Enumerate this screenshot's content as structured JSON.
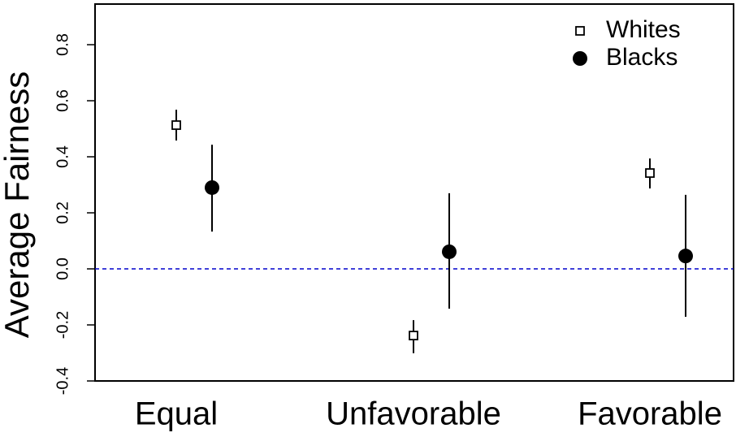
{
  "chart_data": {
    "type": "dotplot",
    "y_label": "Average Fairness",
    "categories": [
      "Equal",
      "Unfavorable",
      "Favorable"
    ],
    "series": [
      {
        "name": "Whites",
        "marker": "square",
        "color": "#000000",
        "values": [
          0.513,
          -0.238,
          0.342
        ],
        "lower": [
          0.458,
          -0.301,
          0.287
        ],
        "upper": [
          0.568,
          -0.183,
          0.394
        ]
      },
      {
        "name": "Blacks",
        "marker": "circle",
        "color": "#000000",
        "values": [
          0.29,
          0.061,
          0.046
        ],
        "lower": [
          0.133,
          -0.142,
          -0.171
        ],
        "upper": [
          0.443,
          0.27,
          0.264
        ]
      }
    ],
    "ylim": [
      -0.4,
      0.945
    ],
    "yticks": [
      -0.4,
      -0.2,
      {
        "value": 0,
        "label": "0.0"
      },
      0.2,
      0.4,
      0.6,
      0.8
    ],
    "hline": 0,
    "hline_color": "#0000cc",
    "legend": "top-right"
  }
}
